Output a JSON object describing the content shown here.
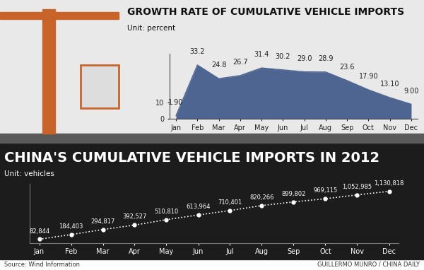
{
  "chart_data": [
    {
      "type": "area",
      "title": "GROWTH RATE OF CUMULATIVE VEHICLE IMPORTS",
      "subtitle": "Unit: percent",
      "categories": [
        "Jan",
        "Feb",
        "Mar",
        "Apr",
        "May",
        "Jun",
        "Jul",
        "Aug",
        "Sep",
        "Oct",
        "Nov",
        "Dec"
      ],
      "values": [
        1.9,
        33.2,
        24.8,
        26.7,
        31.4,
        30.2,
        29.0,
        28.9,
        23.6,
        17.9,
        13.1,
        9.0
      ],
      "value_labels": [
        "1.90",
        "33.2",
        "24.8",
        "26.7",
        "31.4",
        "30.2",
        "29.0",
        "28.9",
        "23.6",
        "17.90",
        "13.10",
        "9.00"
      ],
      "data_labels": true,
      "color": "#4d6590",
      "ylim": [
        0,
        40
      ],
      "yticks": [
        0,
        10
      ]
    },
    {
      "type": "line",
      "title": "CHINA'S CUMULATIVE VEHICLE IMPORTS IN 2012",
      "subtitle": "Unit: vehicles",
      "categories": [
        "Jan",
        "Feb",
        "Mar",
        "Apr",
        "May",
        "Jun",
        "Jul",
        "Aug",
        "Sep",
        "Oct",
        "Nov",
        "Dec"
      ],
      "values": [
        82844,
        184403,
        294817,
        392527,
        510810,
        613964,
        710401,
        820266,
        899802,
        969115,
        1052985,
        1130818
      ],
      "value_labels": [
        "82,844",
        "184,403",
        "294,817",
        "392,527",
        "510,810",
        "613,964",
        "710,401",
        "820,266",
        "899,802",
        "969,115",
        "1,052,985",
        "1,130,818"
      ],
      "data_labels": true,
      "color": "#ffffff",
      "marker": "o",
      "line_style": "dotted",
      "tick_labels": "x",
      "ylim": [
        0,
        1300000
      ]
    }
  ],
  "source": "Source: Wind Information",
  "credit": "GUILLERMO MUNRO / CHINA DAILY"
}
